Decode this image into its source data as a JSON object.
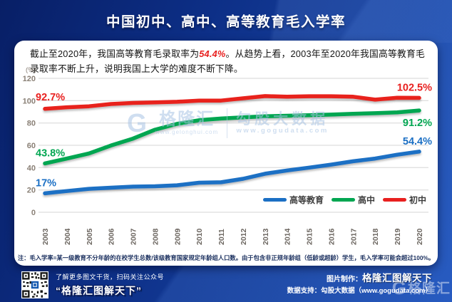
{
  "header": {
    "title": "中国初中、高中、高等教育毛入学率"
  },
  "description": {
    "before": "截止至2020年，我国高等教育毛录取率为",
    "highlight": "54.4%",
    "after": "。从趋势上看，2003年至2020年我国高等教育毛录取率不断上升，说明我国上大学的难度不断下降。"
  },
  "chart_data": {
    "type": "line",
    "unit_label": "(%)",
    "x": [
      2003,
      2004,
      2005,
      2006,
      2007,
      2008,
      2009,
      2010,
      2011,
      2012,
      2013,
      2014,
      2015,
      2016,
      2017,
      2018,
      2019,
      2020
    ],
    "series": [
      {
        "name": "高等教育",
        "color": "#1b6fc4",
        "values": [
          17.0,
          19.0,
          21.0,
          22.0,
          23.0,
          23.3,
          24.2,
          26.5,
          26.9,
          30.0,
          34.5,
          37.5,
          40.0,
          42.7,
          45.7,
          48.1,
          51.6,
          54.4
        ],
        "start_label": "17%",
        "end_label": "54.4%"
      },
      {
        "name": "高中",
        "color": "#00a651",
        "values": [
          43.8,
          48.1,
          52.7,
          59.8,
          66.0,
          74.0,
          79.2,
          82.5,
          84.0,
          85.0,
          86.0,
          86.5,
          87.0,
          87.5,
          88.3,
          88.8,
          89.5,
          91.2
        ],
        "start_label": "43.8%",
        "end_label": "91.2%"
      },
      {
        "name": "初中",
        "color": "#e8201f",
        "values": [
          92.7,
          94.1,
          95.0,
          97.0,
          98.0,
          98.5,
          99.0,
          100.1,
          100.1,
          102.1,
          104.1,
          103.5,
          104.0,
          104.0,
          103.5,
          100.9,
          102.6,
          102.5
        ],
        "start_label": "92.7%",
        "end_label": "102.5%"
      }
    ],
    "ylim": [
      0,
      120
    ],
    "yticks": [
      0,
      20,
      40,
      60,
      80,
      100,
      120
    ],
    "grid": true,
    "legend_position": "bottom-right"
  },
  "watermark": {
    "g": "G",
    "brand": "格隆汇",
    "brand_url": "www.gelonghui.com",
    "data_brand": "勾股大数据",
    "data_url": "www.gogudata.com"
  },
  "footnote": "注：毛入学率=某一级教育不分年龄的在校学生总数/该级教育国家规定年龄组人口数。由于包含非正规年龄组（低龄或超龄）学生，毛入学率可能会超过100%。",
  "footer": {
    "qr_caption_line1": "了解更多图文干货，扫码关注公众号",
    "qr_caption_line2": "“格隆汇图解天下”",
    "credit_maker_label": "图片制作：",
    "credit_maker": "格隆汇图解天下",
    "credit_data_label": "数据支持：",
    "credit_data": "勾股大数据（www.gogudata.com）",
    "logo_g": "G",
    "logo_text": "格隆汇"
  }
}
